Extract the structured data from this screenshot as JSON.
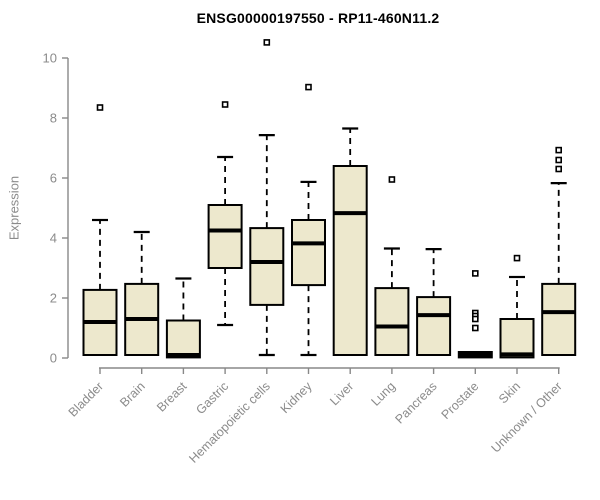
{
  "chart_data": {
    "type": "boxplot",
    "title": "ENSG00000197550 - RP11-460N11.2",
    "ylabel": "Expression",
    "xlabel": "",
    "ylim": [
      0,
      10.6
    ],
    "yticks": [
      0,
      2,
      4,
      6,
      8,
      10
    ],
    "grid": false,
    "legend": "none",
    "colors": {
      "box_fill": "#EDE8CD",
      "box_stroke": "#000000",
      "median": "#000000",
      "whisker": "#000000",
      "outlier_fill": "#FFFFFF",
      "outlier_stroke": "#000000",
      "axis": "#888888",
      "tick_label": "#8B8B8B",
      "title": "#000000"
    },
    "categories": [
      "Bladder",
      "Brain",
      "Breast",
      "Gastric",
      "Hematopoietic cells",
      "Kidney",
      "Liver",
      "Lung",
      "Pancreas",
      "Prostate",
      "Skin",
      "Unknown / Other"
    ],
    "series": [
      {
        "category": "Bladder",
        "whisker_low": 0.1,
        "q1": 0.1,
        "median": 1.2,
        "q3": 2.27,
        "whisker_high": 4.6,
        "outliers": [
          8.35
        ]
      },
      {
        "category": "Brain",
        "whisker_low": 0.1,
        "q1": 0.1,
        "median": 1.3,
        "q3": 2.47,
        "whisker_high": 4.2,
        "outliers": []
      },
      {
        "category": "Breast",
        "whisker_low": 0.02,
        "q1": 0.02,
        "median": 0.1,
        "q3": 1.25,
        "whisker_high": 2.65,
        "outliers": []
      },
      {
        "category": "Gastric",
        "whisker_low": 1.1,
        "q1": 3.0,
        "median": 4.25,
        "q3": 5.1,
        "whisker_high": 6.7,
        "outliers": [
          8.45
        ]
      },
      {
        "category": "Hematopoietic cells",
        "whisker_low": 0.1,
        "q1": 1.77,
        "median": 3.2,
        "q3": 4.33,
        "whisker_high": 7.43,
        "outliers": [
          10.52
        ]
      },
      {
        "category": "Kidney",
        "whisker_low": 0.1,
        "q1": 2.43,
        "median": 3.82,
        "q3": 4.6,
        "whisker_high": 5.87,
        "outliers": [
          9.03
        ]
      },
      {
        "category": "Liver",
        "whisker_low": 0.1,
        "q1": 0.1,
        "median": 4.83,
        "q3": 6.4,
        "whisker_high": 7.65,
        "outliers": []
      },
      {
        "category": "Lung",
        "whisker_low": 0.1,
        "q1": 0.1,
        "median": 1.05,
        "q3": 2.33,
        "whisker_high": 3.65,
        "outliers": [
          5.95
        ]
      },
      {
        "category": "Pancreas",
        "whisker_low": 0.1,
        "q1": 0.1,
        "median": 1.43,
        "q3": 2.03,
        "whisker_high": 3.63,
        "outliers": []
      },
      {
        "category": "Prostate",
        "whisker_low": 0.02,
        "q1": 0.02,
        "median": 0.1,
        "q3": 0.2,
        "whisker_high": 0.2,
        "outliers": [
          2.82,
          1.5,
          1.4,
          1.3,
          1.0
        ]
      },
      {
        "category": "Skin",
        "whisker_low": 0.02,
        "q1": 0.02,
        "median": 0.12,
        "q3": 1.3,
        "whisker_high": 2.7,
        "outliers": [
          3.33
        ]
      },
      {
        "category": "Unknown / Other",
        "whisker_low": 0.1,
        "q1": 0.1,
        "median": 1.53,
        "q3": 2.47,
        "whisker_high": 5.83,
        "outliers": [
          6.93,
          6.6,
          6.3
        ]
      }
    ]
  }
}
